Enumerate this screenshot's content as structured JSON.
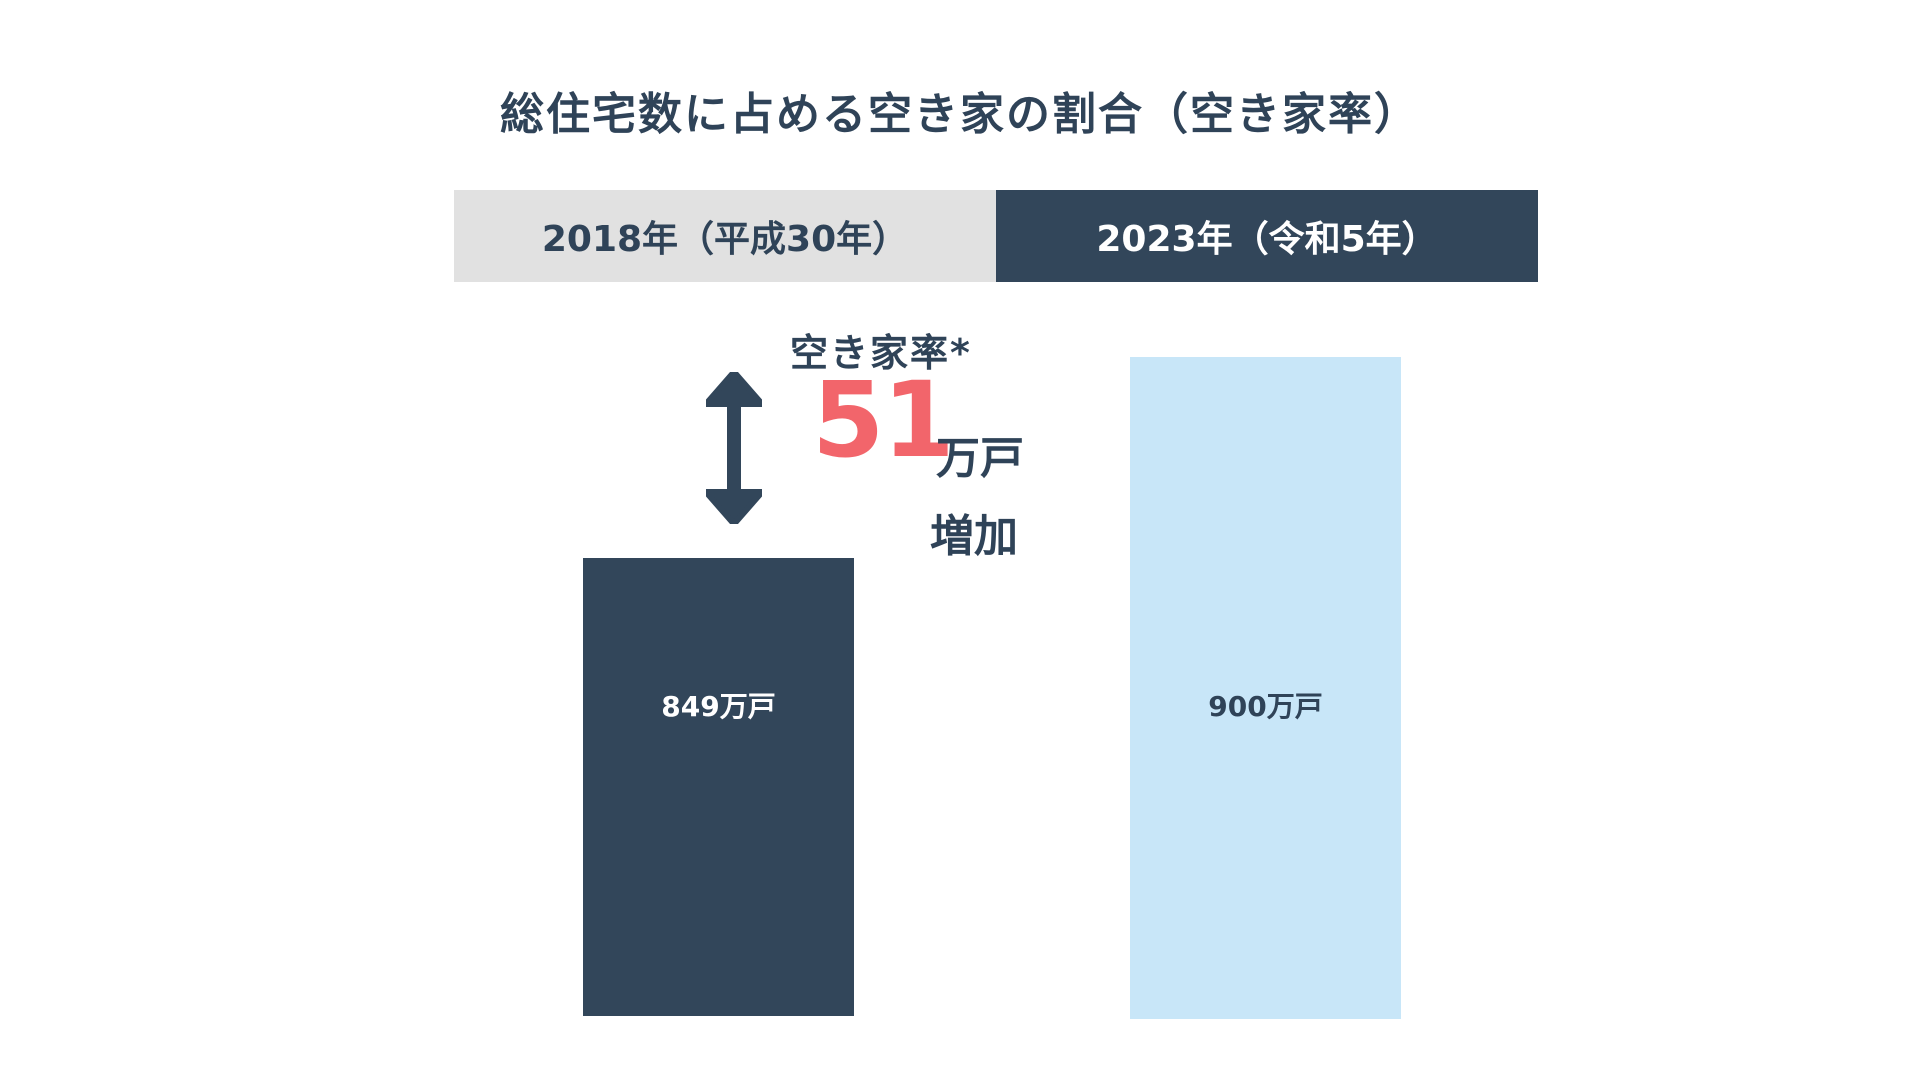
{
  "chart_data": {
    "type": "bar",
    "title": "総住宅数に占める空き家の割合（空き家率）",
    "categories": [
      "2018年（平成30年）",
      "2023年（令和5年）"
    ],
    "values": [
      849,
      900
    ],
    "value_labels": [
      "849万戸",
      "900万戸"
    ],
    "unit": "万戸",
    "annotation": {
      "label": "空き家率*",
      "number": "51",
      "unit": "万戸",
      "word": "増加"
    }
  },
  "colors": {
    "dark": "#32465a",
    "light_bar": "#c8e6f8",
    "header_light": "#e1e1e1",
    "accent": "#f2656b"
  }
}
